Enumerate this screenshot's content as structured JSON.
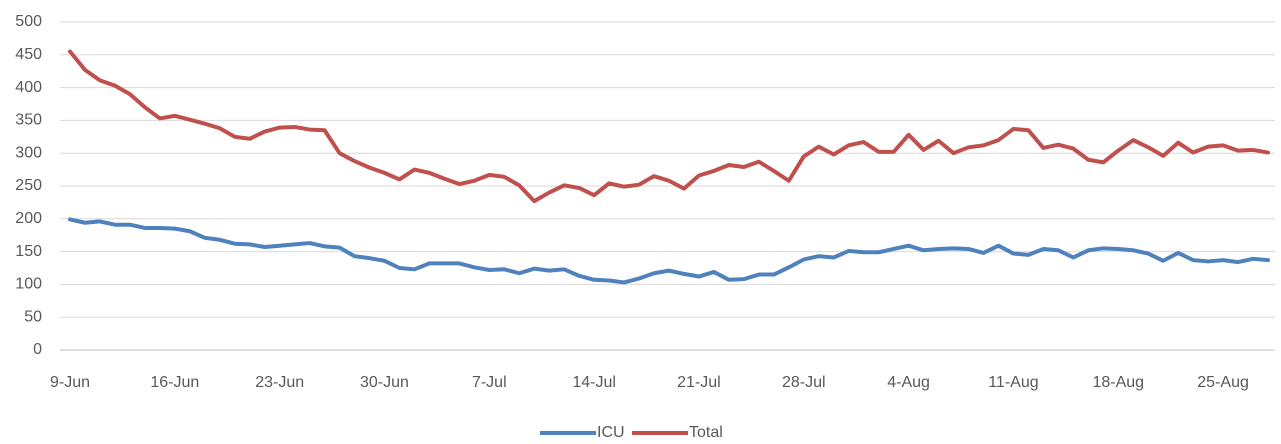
{
  "chart_data": {
    "type": "line",
    "categories": [
      "9-Jun",
      null,
      null,
      null,
      null,
      null,
      null,
      "16-Jun",
      null,
      null,
      null,
      null,
      null,
      null,
      "23-Jun",
      null,
      null,
      null,
      null,
      null,
      null,
      "30-Jun",
      null,
      null,
      null,
      null,
      null,
      null,
      "7-Jul",
      null,
      null,
      null,
      null,
      null,
      null,
      "14-Jul",
      null,
      null,
      null,
      null,
      null,
      null,
      "21-Jul",
      null,
      null,
      null,
      null,
      null,
      null,
      "28-Jul",
      null,
      null,
      null,
      null,
      null,
      null,
      "4-Aug",
      null,
      null,
      null,
      null,
      null,
      null,
      "11-Aug",
      null,
      null,
      null,
      null,
      null,
      null,
      "18-Aug",
      null,
      null,
      null,
      null,
      null,
      null,
      "25-Aug",
      null,
      null,
      null
    ],
    "series": [
      {
        "name": "ICU",
        "color": "#4f81bd",
        "values": [
          199,
          194,
          196,
          191,
          191,
          186,
          186,
          185,
          181,
          171,
          168,
          162,
          161,
          157,
          159,
          161,
          163,
          158,
          156,
          143,
          140,
          136,
          125,
          123,
          132,
          132,
          132,
          126,
          122,
          123,
          117,
          124,
          121,
          123,
          113,
          107,
          106,
          103,
          109,
          117,
          121,
          116,
          112,
          119,
          107,
          108,
          115,
          115,
          126,
          138,
          143,
          141,
          151,
          149,
          149,
          154,
          159,
          152,
          154,
          155,
          154,
          148,
          159,
          147,
          145,
          154,
          152,
          141,
          152,
          155,
          154,
          152,
          147,
          136,
          148,
          137,
          135,
          137,
          134,
          139,
          137
        ]
      },
      {
        "name": "Total",
        "color": "#c0504d",
        "values": [
          455,
          427,
          411,
          403,
          390,
          370,
          353,
          357,
          351,
          345,
          338,
          325,
          322,
          333,
          339,
          340,
          336,
          335,
          300,
          288,
          278,
          270,
          260,
          275,
          270,
          261,
          253,
          258,
          267,
          264,
          251,
          227,
          240,
          251,
          247,
          236,
          254,
          249,
          252,
          265,
          258,
          246,
          266,
          273,
          282,
          279,
          287,
          273,
          258,
          295,
          310,
          298,
          312,
          317,
          302,
          302,
          328,
          305,
          319,
          300,
          309,
          312,
          320,
          337,
          335,
          308,
          313,
          307,
          290,
          286,
          304,
          320,
          309,
          296,
          316,
          301,
          310,
          312,
          304,
          305,
          301
        ]
      }
    ],
    "ylim": [
      0,
      500
    ],
    "yticks": [
      0,
      50,
      100,
      150,
      200,
      250,
      300,
      350,
      400,
      450,
      500
    ],
    "grid": true,
    "legend": "bottom"
  }
}
